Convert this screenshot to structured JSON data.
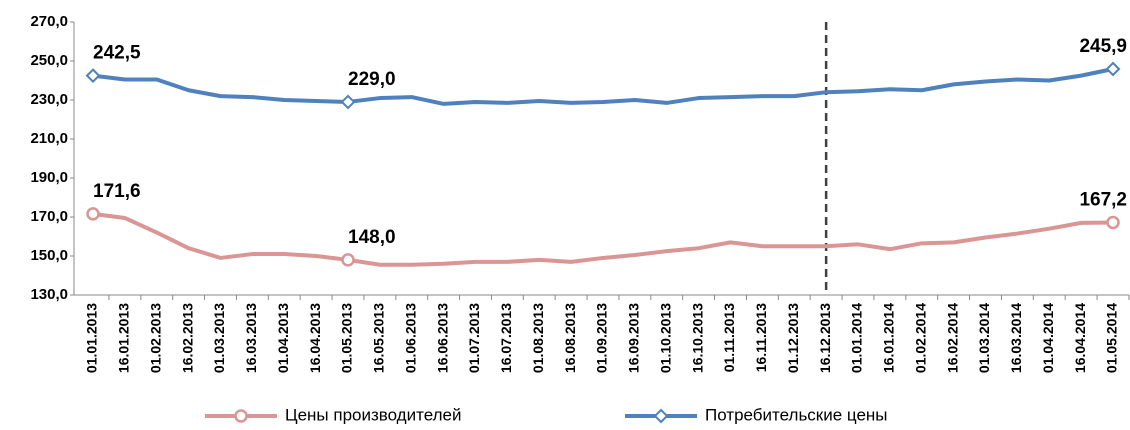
{
  "chart_data": {
    "type": "line",
    "categories": [
      "01.01.2013",
      "16.01.2013",
      "01.02.2013",
      "16.02.2013",
      "01.03.2013",
      "16.03.2013",
      "01.04.2013",
      "16.04.2013",
      "01.05.2013",
      "16.05.2013",
      "01.06.2013",
      "16.06.2013",
      "01.07.2013",
      "16.07.2013",
      "01.08.2013",
      "16.08.2013",
      "01.09.2013",
      "16.09.2013",
      "01.10.2013",
      "16.10.2013",
      "01.11.2013",
      "16.11.2013",
      "01.12.2013",
      "16.12.2013",
      "01.01.2014",
      "16.01.2014",
      "01.02.2014",
      "16.02.2014",
      "01.03.2014",
      "16.03.2014",
      "01.04.2014",
      "16.04.2014",
      "01.05.2014"
    ],
    "series": [
      {
        "name": "Цены производителей",
        "color": "#d99694",
        "label_color": "#953735",
        "marker": "circle",
        "values": [
          171.6,
          169.5,
          162,
          154,
          149,
          151,
          151,
          150,
          148,
          145.5,
          145.5,
          146,
          147,
          147,
          148,
          147,
          149,
          150.5,
          152.5,
          154,
          157,
          155,
          155,
          155,
          156,
          153.5,
          156.5,
          157,
          159.5,
          161.5,
          164,
          167,
          167.2
        ],
        "value_labels": [
          "171,6",
          null,
          null,
          null,
          null,
          null,
          null,
          null,
          "148,0",
          null,
          null,
          null,
          null,
          null,
          null,
          null,
          null,
          null,
          null,
          null,
          null,
          null,
          null,
          null,
          null,
          null,
          null,
          null,
          null,
          null,
          null,
          null,
          "167,2"
        ]
      },
      {
        "name": "Потребительские цены",
        "color": "#4f81bd",
        "label_color": "#1f3864",
        "marker": "diamond",
        "values": [
          242.5,
          240.5,
          240.5,
          235,
          232,
          231.5,
          230,
          229.5,
          229,
          231,
          231.5,
          228,
          229,
          228.5,
          229.5,
          228.5,
          229,
          230,
          228.5,
          231,
          231.5,
          232,
          232,
          234,
          234.5,
          235.5,
          235,
          238,
          239.5,
          240.5,
          240,
          242.5,
          245.9
        ],
        "value_labels": [
          "242,5",
          null,
          null,
          null,
          null,
          null,
          null,
          null,
          "229,0",
          null,
          null,
          null,
          null,
          null,
          null,
          null,
          null,
          null,
          null,
          null,
          null,
          null,
          null,
          null,
          null,
          null,
          null,
          null,
          null,
          null,
          null,
          null,
          "245,9"
        ]
      }
    ],
    "ylim": [
      130,
      270
    ],
    "yticks": [
      {
        "value": 130,
        "label": "130,0"
      },
      {
        "value": 150,
        "label": "150,0"
      },
      {
        "value": 170,
        "label": "170,0"
      },
      {
        "value": 190,
        "label": "190,0"
      },
      {
        "value": 210,
        "label": "210,0"
      },
      {
        "value": 230,
        "label": "230,0"
      },
      {
        "value": 250,
        "label": "250,0"
      },
      {
        "value": 270,
        "label": "270,0"
      }
    ],
    "vline_at": "16.12.2013",
    "legend": "bottom"
  }
}
